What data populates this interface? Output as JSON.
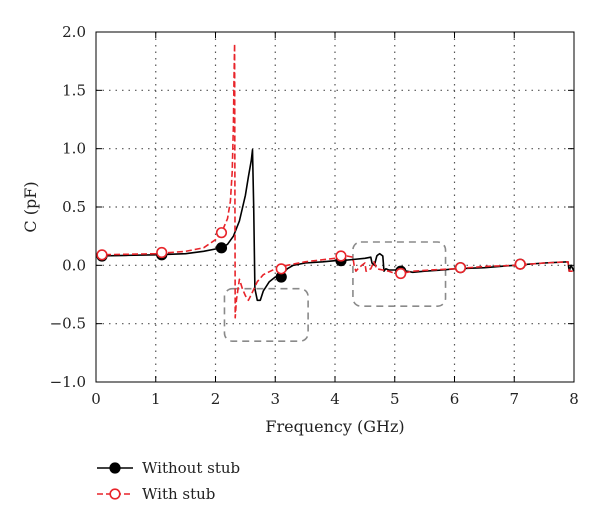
{
  "chart_data": {
    "type": "line",
    "xlabel": "Frequency (GHz)",
    "ylabel": "C (pF)",
    "xlim": [
      0,
      8
    ],
    "ylim": [
      -1.0,
      2.0
    ],
    "x_ticks": [
      0,
      1,
      2,
      3,
      4,
      5,
      6,
      7,
      8
    ],
    "y_ticks": [
      -1.0,
      -0.5,
      0.0,
      0.5,
      1.0,
      1.5,
      2.0
    ],
    "x_tick_labels": [
      "0",
      "1",
      "2",
      "3",
      "4",
      "5",
      "6",
      "7",
      "8"
    ],
    "y_tick_labels": [
      "−1.0",
      "−0.5",
      "0.0",
      "0.5",
      "1.0",
      "1.5",
      "2.0"
    ],
    "grid": true,
    "legend_position": "bottom-left, below plot",
    "series": [
      {
        "name": "Without stub",
        "color": "#000000",
        "line_style": "solid",
        "marker": "filled-circle",
        "x": [
          0.0,
          0.5,
          1.0,
          1.5,
          1.8,
          2.0,
          2.1,
          2.2,
          2.3,
          2.4,
          2.5,
          2.55,
          2.6,
          2.62,
          2.64,
          2.66,
          2.7,
          2.75,
          2.8,
          2.9,
          3.0,
          3.1,
          3.2,
          3.3,
          3.5,
          3.8,
          4.0,
          4.1,
          4.3,
          4.5,
          4.6,
          4.62,
          4.66,
          4.7,
          4.72,
          4.75,
          4.8,
          4.82,
          4.85,
          4.9,
          5.0,
          5.1,
          5.3,
          5.5,
          5.8,
          6.0,
          6.5,
          7.0,
          7.5,
          7.9,
          7.92,
          7.95,
          8.0
        ],
        "y": [
          0.08,
          0.085,
          0.09,
          0.1,
          0.12,
          0.14,
          0.15,
          0.18,
          0.25,
          0.38,
          0.6,
          0.76,
          0.9,
          0.99,
          0.5,
          -0.2,
          -0.3,
          -0.3,
          -0.22,
          -0.14,
          -0.1,
          -0.09,
          -0.03,
          0.0,
          0.02,
          0.03,
          0.04,
          0.04,
          0.05,
          0.06,
          0.07,
          0.02,
          0.0,
          0.08,
          0.09,
          0.1,
          0.08,
          -0.05,
          -0.03,
          -0.04,
          -0.04,
          -0.04,
          -0.06,
          -0.05,
          -0.04,
          -0.03,
          -0.02,
          0.0,
          0.02,
          0.03,
          -0.05,
          0.0,
          -0.05
        ],
        "marker_x": [
          0.1,
          1.1,
          2.1,
          3.1,
          4.1,
          5.1,
          6.1,
          7.1
        ],
        "marker_y": [
          0.08,
          0.09,
          0.15,
          -0.1,
          0.04,
          -0.05,
          -0.02,
          0.01
        ]
      },
      {
        "name": "With stub",
        "color": "#e8242a",
        "line_style": "dashed",
        "marker": "open-circle",
        "x": [
          0.0,
          0.5,
          1.0,
          1.5,
          1.8,
          2.0,
          2.1,
          2.2,
          2.25,
          2.28,
          2.3,
          2.31,
          2.32,
          2.33,
          2.35,
          2.4,
          2.45,
          2.5,
          2.55,
          2.6,
          2.7,
          2.8,
          3.0,
          3.2,
          3.5,
          4.0,
          4.2,
          4.3,
          4.32,
          4.35,
          4.4,
          4.45,
          4.5,
          4.52,
          4.55,
          4.6,
          4.65,
          4.7,
          4.8,
          4.9,
          5.0,
          5.1,
          5.3,
          5.6,
          6.0,
          6.5,
          7.0,
          7.5,
          7.9,
          7.92,
          8.0
        ],
        "y": [
          0.09,
          0.095,
          0.1,
          0.12,
          0.15,
          0.22,
          0.28,
          0.4,
          0.55,
          0.8,
          1.2,
          1.6,
          1.9,
          -0.45,
          -0.3,
          -0.12,
          -0.2,
          -0.26,
          -0.3,
          -0.25,
          -0.14,
          -0.08,
          -0.03,
          0.0,
          0.03,
          0.06,
          0.08,
          0.07,
          0.0,
          -0.05,
          -0.02,
          0.0,
          0.02,
          -0.05,
          -0.04,
          -0.03,
          0.03,
          -0.03,
          -0.04,
          -0.05,
          -0.07,
          -0.07,
          -0.05,
          -0.04,
          -0.03,
          -0.01,
          0.0,
          0.02,
          0.03,
          -0.05,
          -0.05
        ],
        "marker_x": [
          0.1,
          1.1,
          2.1,
          3.1,
          4.1,
          5.1,
          6.1,
          7.1
        ],
        "marker_y": [
          0.09,
          0.11,
          0.28,
          -0.03,
          0.08,
          -0.07,
          -0.02,
          0.01
        ]
      }
    ],
    "annotations": [
      {
        "type": "dashed-rounded-box",
        "x_range": [
          2.15,
          3.55
        ],
        "y_range": [
          -0.65,
          -0.2
        ]
      },
      {
        "type": "dashed-rounded-box",
        "x_range": [
          4.3,
          5.85
        ],
        "y_range": [
          -0.35,
          0.2
        ]
      }
    ]
  }
}
